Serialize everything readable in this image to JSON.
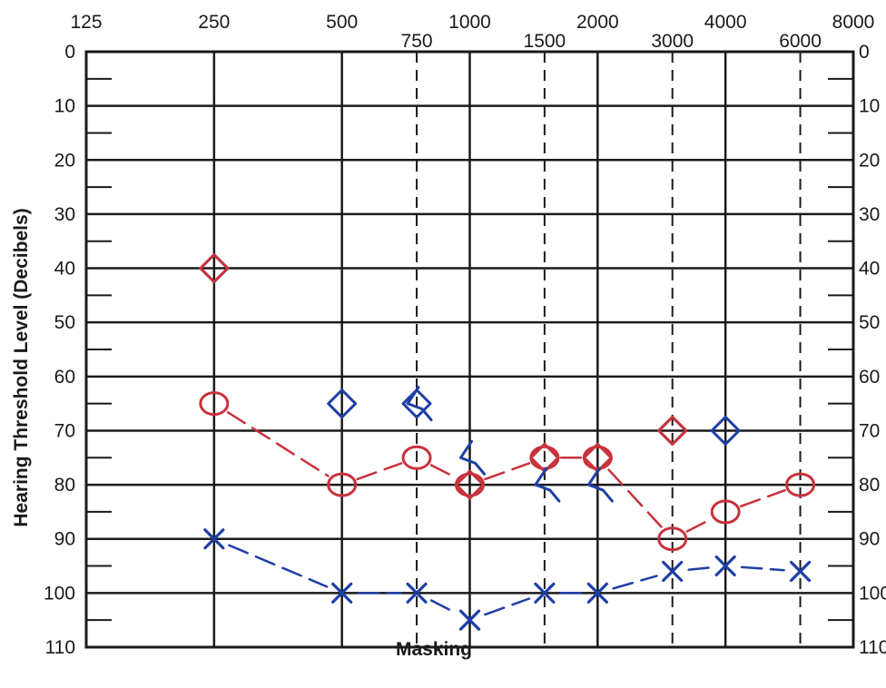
{
  "chart_data": {
    "type": "scatter",
    "title": "",
    "xlabel": "Masking",
    "ylabel": "Hearing Threshold Level (Decibels)",
    "x_scale": "octave",
    "x_ticks_top_row": [
      "125",
      "250",
      "500",
      "1000",
      "2000",
      "4000",
      "8000"
    ],
    "x_ticks_bottom_row": [
      "750",
      "1500",
      "3000",
      "6000"
    ],
    "x_ticks": [
      125,
      250,
      500,
      750,
      1000,
      1500,
      2000,
      3000,
      4000,
      6000,
      8000
    ],
    "y_ticks": [
      "0",
      "10",
      "20",
      "30",
      "40",
      "50",
      "60",
      "70",
      "80",
      "90",
      "100",
      "110"
    ],
    "ylim": [
      0,
      110
    ],
    "y_inverted": true,
    "grid": true,
    "series": [
      {
        "marker": "circle",
        "color": "#c8323c",
        "connected": true,
        "x": [
          250,
          500,
          750,
          1000,
          1500,
          2000,
          3000,
          4000,
          6000
        ],
        "y": [
          65,
          80,
          75,
          80,
          75,
          75,
          90,
          85,
          80
        ]
      },
      {
        "marker": "cross",
        "color": "#1f3fa6",
        "connected": true,
        "x": [
          250,
          500,
          750,
          1000,
          1500,
          2000,
          3000,
          4000,
          6000
        ],
        "y": [
          90,
          100,
          100,
          105,
          100,
          100,
          96,
          95,
          96
        ]
      },
      {
        "marker": "diamond",
        "color": "#1f3fa6",
        "connected": false,
        "x": [
          250,
          500,
          750,
          3000,
          4000
        ],
        "y": [
          40,
          65,
          65,
          70,
          70
        ]
      },
      {
        "marker": "diamond",
        "color": "#c8323c",
        "connected": false,
        "x": [
          250,
          1000,
          1500,
          2000,
          3000
        ],
        "y": [
          40,
          80,
          75,
          75,
          70
        ]
      },
      {
        "marker": "bracket",
        "color": "#1f3fa6",
        "connected": false,
        "x": [
          750,
          1000,
          1500,
          2000
        ],
        "y": [
          65,
          75,
          80,
          80
        ]
      }
    ]
  }
}
